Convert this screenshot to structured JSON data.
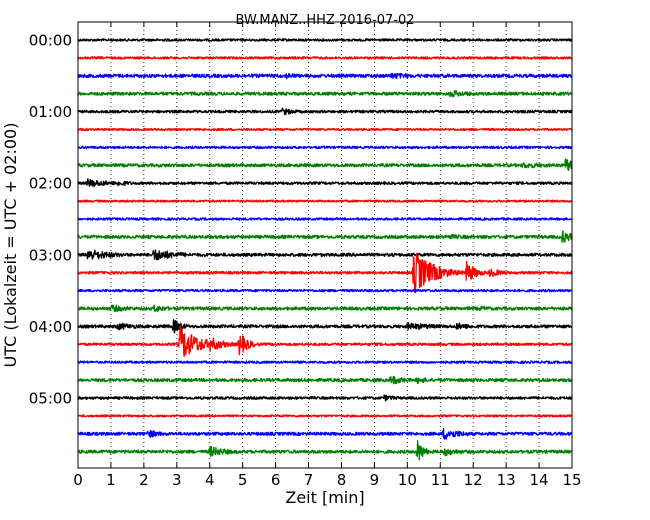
{
  "chart_data": {
    "type": "line",
    "title": "BW.MANZ..HHZ 2016-07-02",
    "xlabel": "Zeit  [min]",
    "ylabel": "UTC (Lokalzeit = UTC + 02:00)",
    "xlim": [
      0,
      15
    ],
    "x_ticks": [
      "0",
      "1",
      "2",
      "3",
      "4",
      "5",
      "6",
      "7",
      "8",
      "9",
      "10",
      "11",
      "12",
      "13",
      "14",
      "15"
    ],
    "y_tick_labels": [
      "00:00",
      "01:00",
      "02:00",
      "03:00",
      "04:00",
      "05:00"
    ],
    "trace_minutes": 15,
    "grid": "vertical dotted at each minute",
    "colors": [
      "#000000",
      "#ff0000",
      "#0000ff",
      "#008000"
    ],
    "series": [
      {
        "start": "00:00",
        "amp": 0.09,
        "events": []
      },
      {
        "start": "00:15",
        "amp": 0.09,
        "events": []
      },
      {
        "start": "00:30",
        "amp": 0.13,
        "events": [
          {
            "t": 6.3,
            "amp": 0.25,
            "dur": 0.6
          },
          {
            "t": 9.5,
            "amp": 0.25,
            "dur": 1.2
          }
        ]
      },
      {
        "start": "00:45",
        "amp": 0.12,
        "events": [
          {
            "t": 11.3,
            "amp": 0.3,
            "dur": 0.8
          }
        ]
      },
      {
        "start": "01:00",
        "amp": 0.1,
        "events": [
          {
            "t": 6.2,
            "amp": 0.3,
            "dur": 0.5
          }
        ]
      },
      {
        "start": "01:15",
        "amp": 0.08,
        "events": []
      },
      {
        "start": "01:30",
        "amp": 0.09,
        "events": []
      },
      {
        "start": "01:45",
        "amp": 0.12,
        "events": [
          {
            "t": 13.5,
            "amp": 0.25,
            "dur": 1.2
          },
          {
            "t": 14.8,
            "amp": 0.6,
            "dur": 0.3
          }
        ]
      },
      {
        "start": "02:00",
        "amp": 0.1,
        "events": [
          {
            "t": 0.3,
            "amp": 0.35,
            "dur": 0.8
          },
          {
            "t": 1.2,
            "amp": 0.25,
            "dur": 0.6
          }
        ]
      },
      {
        "start": "02:15",
        "amp": 0.08,
        "events": []
      },
      {
        "start": "02:30",
        "amp": 0.09,
        "events": []
      },
      {
        "start": "02:45",
        "amp": 0.12,
        "events": [
          {
            "t": 11.2,
            "amp": 0.2,
            "dur": 1.5
          },
          {
            "t": 14.7,
            "amp": 0.5,
            "dur": 0.5
          }
        ]
      },
      {
        "start": "03:00",
        "amp": 0.12,
        "events": [
          {
            "t": 0.3,
            "amp": 0.5,
            "dur": 0.8
          },
          {
            "t": 2.3,
            "amp": 0.5,
            "dur": 0.8
          }
        ]
      },
      {
        "start": "03:15",
        "amp": 0.1,
        "events": [
          {
            "t": 10.2,
            "amp": 1.8,
            "dur": 0.6
          },
          {
            "t": 11.8,
            "amp": 0.9,
            "dur": 0.3
          },
          {
            "t": 12.5,
            "amp": 0.35,
            "dur": 0.5
          }
        ]
      },
      {
        "start": "03:30",
        "amp": 0.09,
        "events": []
      },
      {
        "start": "03:45",
        "amp": 0.12,
        "events": [
          {
            "t": 1.0,
            "amp": 0.3,
            "dur": 0.8
          },
          {
            "t": 2.3,
            "amp": 0.3,
            "dur": 0.6
          },
          {
            "t": 12.2,
            "amp": 0.2,
            "dur": 0.8
          }
        ]
      },
      {
        "start": "04:00",
        "amp": 0.12,
        "events": [
          {
            "t": 1.2,
            "amp": 0.3,
            "dur": 0.8
          },
          {
            "t": 2.9,
            "amp": 0.6,
            "dur": 0.3
          },
          {
            "t": 10.0,
            "amp": 0.3,
            "dur": 1.2
          },
          {
            "t": 11.5,
            "amp": 0.3,
            "dur": 0.6
          }
        ]
      },
      {
        "start": "04:15",
        "amp": 0.1,
        "events": [
          {
            "t": 3.1,
            "amp": 1.4,
            "dur": 0.6
          },
          {
            "t": 4.0,
            "amp": 0.6,
            "dur": 0.5
          },
          {
            "t": 4.9,
            "amp": 0.9,
            "dur": 0.3
          }
        ]
      },
      {
        "start": "04:30",
        "amp": 0.09,
        "events": []
      },
      {
        "start": "04:45",
        "amp": 0.12,
        "events": [
          {
            "t": 9.5,
            "amp": 0.4,
            "dur": 0.5
          },
          {
            "t": 10.3,
            "amp": 0.3,
            "dur": 0.4
          }
        ]
      },
      {
        "start": "05:00",
        "amp": 0.1,
        "events": [
          {
            "t": 9.3,
            "amp": 0.25,
            "dur": 0.5
          }
        ]
      },
      {
        "start": "05:15",
        "amp": 0.08,
        "events": []
      },
      {
        "start": "05:30",
        "amp": 0.12,
        "events": [
          {
            "t": 2.1,
            "amp": 0.35,
            "dur": 0.5
          },
          {
            "t": 11.1,
            "amp": 0.5,
            "dur": 0.6
          }
        ]
      },
      {
        "start": "05:45",
        "amp": 0.12,
        "events": [
          {
            "t": 4.0,
            "amp": 0.45,
            "dur": 0.6
          },
          {
            "t": 10.3,
            "amp": 1.0,
            "dur": 0.2
          },
          {
            "t": 11.1,
            "amp": 0.35,
            "dur": 0.6
          }
        ]
      }
    ]
  }
}
